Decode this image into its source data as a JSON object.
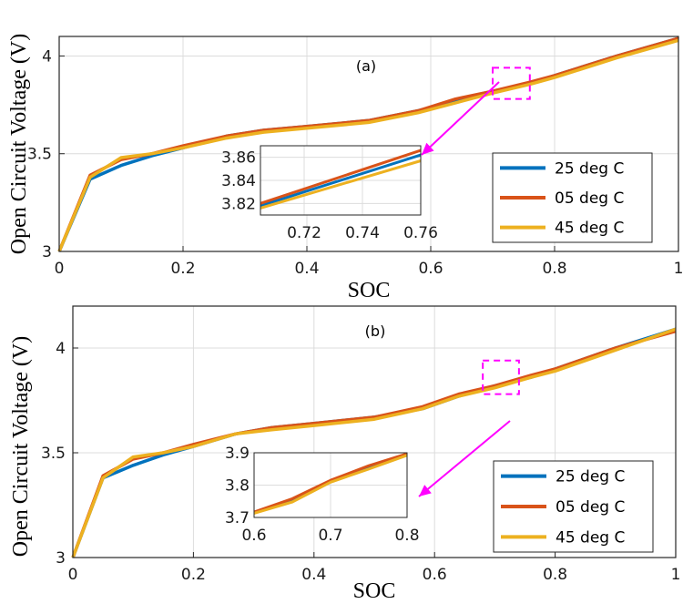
{
  "chart_data": [
    {
      "type": "line",
      "panel_label": "(a)",
      "xlabel": "SOC",
      "ylabel": "Open Circuit Voltage (V)",
      "xlim": [
        0,
        1
      ],
      "ylim": [
        3,
        4.1
      ],
      "xticks": [
        "0",
        "0.2",
        "0.4",
        "0.6",
        "0.8",
        "1"
      ],
      "yticks": [
        "3",
        "3.5",
        "4"
      ],
      "grid": true,
      "legend_position": "bottom-right",
      "series": [
        {
          "name": "25 deg C",
          "color": "#0072BD",
          "points": [
            [
              0,
              3.0
            ],
            [
              0.05,
              3.37
            ],
            [
              0.1,
              3.44
            ],
            [
              0.15,
              3.49
            ],
            [
              0.2,
              3.53
            ],
            [
              0.27,
              3.59
            ],
            [
              0.33,
              3.62
            ],
            [
              0.4,
              3.64
            ],
            [
              0.5,
              3.67
            ],
            [
              0.58,
              3.72
            ],
            [
              0.64,
              3.77
            ],
            [
              0.7,
              3.82
            ],
            [
              0.76,
              3.86
            ],
            [
              0.8,
              3.9
            ],
            [
              0.9,
              4.0
            ],
            [
              1.0,
              4.09
            ]
          ]
        },
        {
          "name": "05 deg C",
          "color": "#D95319",
          "points": [
            [
              0,
              3.0
            ],
            [
              0.05,
              3.39
            ],
            [
              0.1,
              3.47
            ],
            [
              0.15,
              3.5
            ],
            [
              0.2,
              3.54
            ],
            [
              0.27,
              3.59
            ],
            [
              0.33,
              3.62
            ],
            [
              0.4,
              3.64
            ],
            [
              0.5,
              3.67
            ],
            [
              0.58,
              3.72
            ],
            [
              0.64,
              3.78
            ],
            [
              0.7,
              3.82
            ],
            [
              0.76,
              3.866
            ],
            [
              0.8,
              3.9
            ],
            [
              0.9,
              4.0
            ],
            [
              1.0,
              4.09
            ]
          ]
        },
        {
          "name": "45 deg C",
          "color": "#EDB120",
          "points": [
            [
              0,
              3.0
            ],
            [
              0.05,
              3.38
            ],
            [
              0.1,
              3.48
            ],
            [
              0.15,
              3.5
            ],
            [
              0.2,
              3.53
            ],
            [
              0.27,
              3.58
            ],
            [
              0.33,
              3.61
            ],
            [
              0.4,
              3.63
            ],
            [
              0.5,
              3.66
            ],
            [
              0.58,
              3.71
            ],
            [
              0.64,
              3.76
            ],
            [
              0.7,
              3.81
            ],
            [
              0.76,
              3.855
            ],
            [
              0.8,
              3.89
            ],
            [
              0.9,
              3.99
            ],
            [
              1.0,
              4.08
            ]
          ]
        }
      ],
      "zoom_region": {
        "xlim": [
          0.7,
          0.76
        ],
        "ylim": [
          3.78,
          3.94
        ]
      },
      "inset": {
        "xlim": [
          0.705,
          0.76
        ],
        "ylim": [
          3.81,
          3.87
        ],
        "xticks": [
          "0.72",
          "0.74",
          "0.76"
        ],
        "yticks": [
          "3.82",
          "3.84",
          "3.86"
        ],
        "series": [
          {
            "name": "25 deg C",
            "color": "#0072BD",
            "points": [
              [
                0.705,
                3.818
              ],
              [
                0.76,
                3.862
              ]
            ]
          },
          {
            "name": "05 deg C",
            "color": "#D95319",
            "points": [
              [
                0.705,
                3.82
              ],
              [
                0.76,
                3.866
              ]
            ]
          },
          {
            "name": "45 deg C",
            "color": "#EDB120",
            "points": [
              [
                0.705,
                3.816
              ],
              [
                0.76,
                3.857
              ]
            ]
          }
        ]
      }
    },
    {
      "type": "line",
      "panel_label": "(b)",
      "xlabel": "SOC",
      "ylabel": "Open Circuit Voltage (V)",
      "xlim": [
        0,
        1
      ],
      "ylim": [
        3,
        4.2
      ],
      "xticks": [
        "0",
        "0.2",
        "0.4",
        "0.6",
        "0.8",
        "1"
      ],
      "yticks": [
        "3",
        "3.5",
        "4"
      ],
      "grid": true,
      "legend_position": "bottom-right",
      "series": [
        {
          "name": "25 deg C",
          "color": "#0072BD",
          "points": [
            [
              0,
              3.0
            ],
            [
              0.05,
              3.38
            ],
            [
              0.1,
              3.44
            ],
            [
              0.15,
              3.49
            ],
            [
              0.2,
              3.53
            ],
            [
              0.27,
              3.59
            ],
            [
              0.33,
              3.62
            ],
            [
              0.4,
              3.64
            ],
            [
              0.5,
              3.67
            ],
            [
              0.58,
              3.71
            ],
            [
              0.64,
              3.77
            ],
            [
              0.7,
              3.82
            ],
            [
              0.76,
              3.86
            ],
            [
              0.8,
              3.9
            ],
            [
              0.9,
              4.0
            ],
            [
              1.0,
              4.09
            ]
          ]
        },
        {
          "name": "05 deg C",
          "color": "#D95319",
          "points": [
            [
              0,
              3.0
            ],
            [
              0.05,
              3.39
            ],
            [
              0.1,
              3.47
            ],
            [
              0.15,
              3.5
            ],
            [
              0.2,
              3.54
            ],
            [
              0.27,
              3.59
            ],
            [
              0.33,
              3.62
            ],
            [
              0.4,
              3.64
            ],
            [
              0.5,
              3.67
            ],
            [
              0.58,
              3.72
            ],
            [
              0.64,
              3.78
            ],
            [
              0.7,
              3.82
            ],
            [
              0.76,
              3.87
            ],
            [
              0.8,
              3.9
            ],
            [
              0.9,
              4.0
            ],
            [
              1.0,
              4.08
            ]
          ]
        },
        {
          "name": "45 deg C",
          "color": "#EDB120",
          "points": [
            [
              0,
              3.0
            ],
            [
              0.05,
              3.38
            ],
            [
              0.1,
              3.48
            ],
            [
              0.15,
              3.5
            ],
            [
              0.2,
              3.53
            ],
            [
              0.27,
              3.59
            ],
            [
              0.33,
              3.61
            ],
            [
              0.4,
              3.63
            ],
            [
              0.5,
              3.66
            ],
            [
              0.58,
              3.71
            ],
            [
              0.64,
              3.77
            ],
            [
              0.7,
              3.81
            ],
            [
              0.76,
              3.86
            ],
            [
              0.8,
              3.89
            ],
            [
              0.9,
              3.99
            ],
            [
              1.0,
              4.09
            ]
          ]
        }
      ],
      "zoom_region": {
        "xlim": [
          0.68,
          0.74
        ],
        "ylim": [
          3.78,
          3.94
        ]
      },
      "inset": {
        "xlim": [
          0.6,
          0.8
        ],
        "ylim": [
          3.7,
          3.9
        ],
        "xticks": [
          "0.6",
          "0.7",
          "0.8"
        ],
        "yticks": [
          "3.7",
          "3.8",
          "3.9"
        ],
        "series": [
          {
            "name": "25 deg C",
            "color": "#0072BD",
            "points": [
              [
                0.6,
                3.715
              ],
              [
                0.65,
                3.755
              ],
              [
                0.7,
                3.812
              ],
              [
                0.75,
                3.855
              ],
              [
                0.8,
                3.895
              ]
            ]
          },
          {
            "name": "05 deg C",
            "color": "#D95319",
            "points": [
              [
                0.6,
                3.717
              ],
              [
                0.65,
                3.758
              ],
              [
                0.7,
                3.815
              ],
              [
                0.75,
                3.86
              ],
              [
                0.8,
                3.897
              ]
            ]
          },
          {
            "name": "45 deg C",
            "color": "#EDB120",
            "points": [
              [
                0.6,
                3.713
              ],
              [
                0.65,
                3.748
              ],
              [
                0.7,
                3.809
              ],
              [
                0.75,
                3.85
              ],
              [
                0.8,
                3.892
              ]
            ]
          }
        ]
      }
    }
  ],
  "style": {
    "accent_magenta": "#FF00FF",
    "grid_color": "#dcdcdc",
    "axis_color": "#262626"
  }
}
